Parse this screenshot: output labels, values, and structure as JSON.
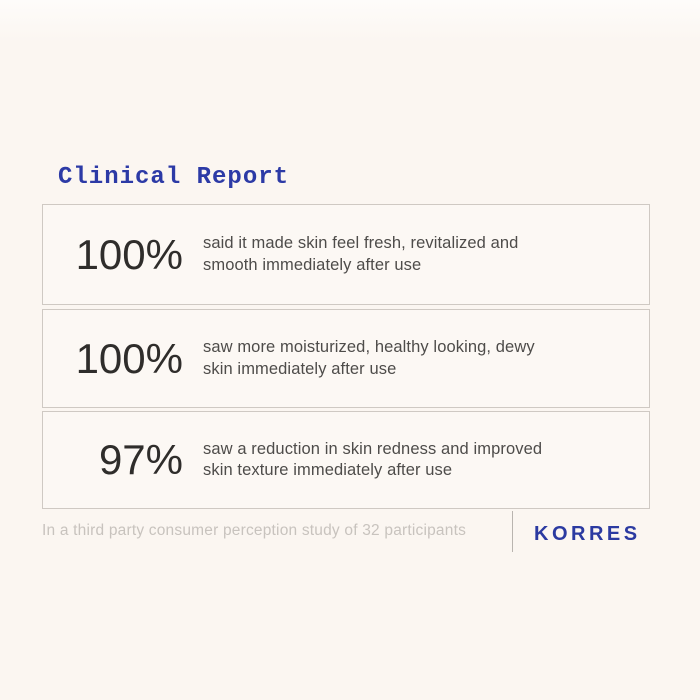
{
  "page": {
    "title": "Clinical Report"
  },
  "stats": {
    "rows": [
      {
        "percent": "100%",
        "line1": "said it made skin feel fresh, revitalized and",
        "line2": "smooth immediately after use"
      },
      {
        "percent": "100%",
        "line1": "saw more moisturized, healthy looking, dewy",
        "line2": "skin immediately after use"
      },
      {
        "percent": "97%",
        "line1": "saw a reduction in skin redness and improved",
        "line2": "skin texture immediately after use"
      }
    ]
  },
  "footer": {
    "note": "In a third party consumer perception study of 32 participants",
    "brand": "KORRES"
  },
  "colors": {
    "background": "#fbf6f1",
    "box_bg": "#fcf8f4",
    "box_border": "#cfc9c3",
    "title_blue": "#2c3aa6",
    "brand_blue": "#2b3aa1",
    "percent_text": "#2f2d2b",
    "description_text": "#4e4c4a",
    "footnote_text": "#c8c3be",
    "divider": "#b9b4af"
  }
}
